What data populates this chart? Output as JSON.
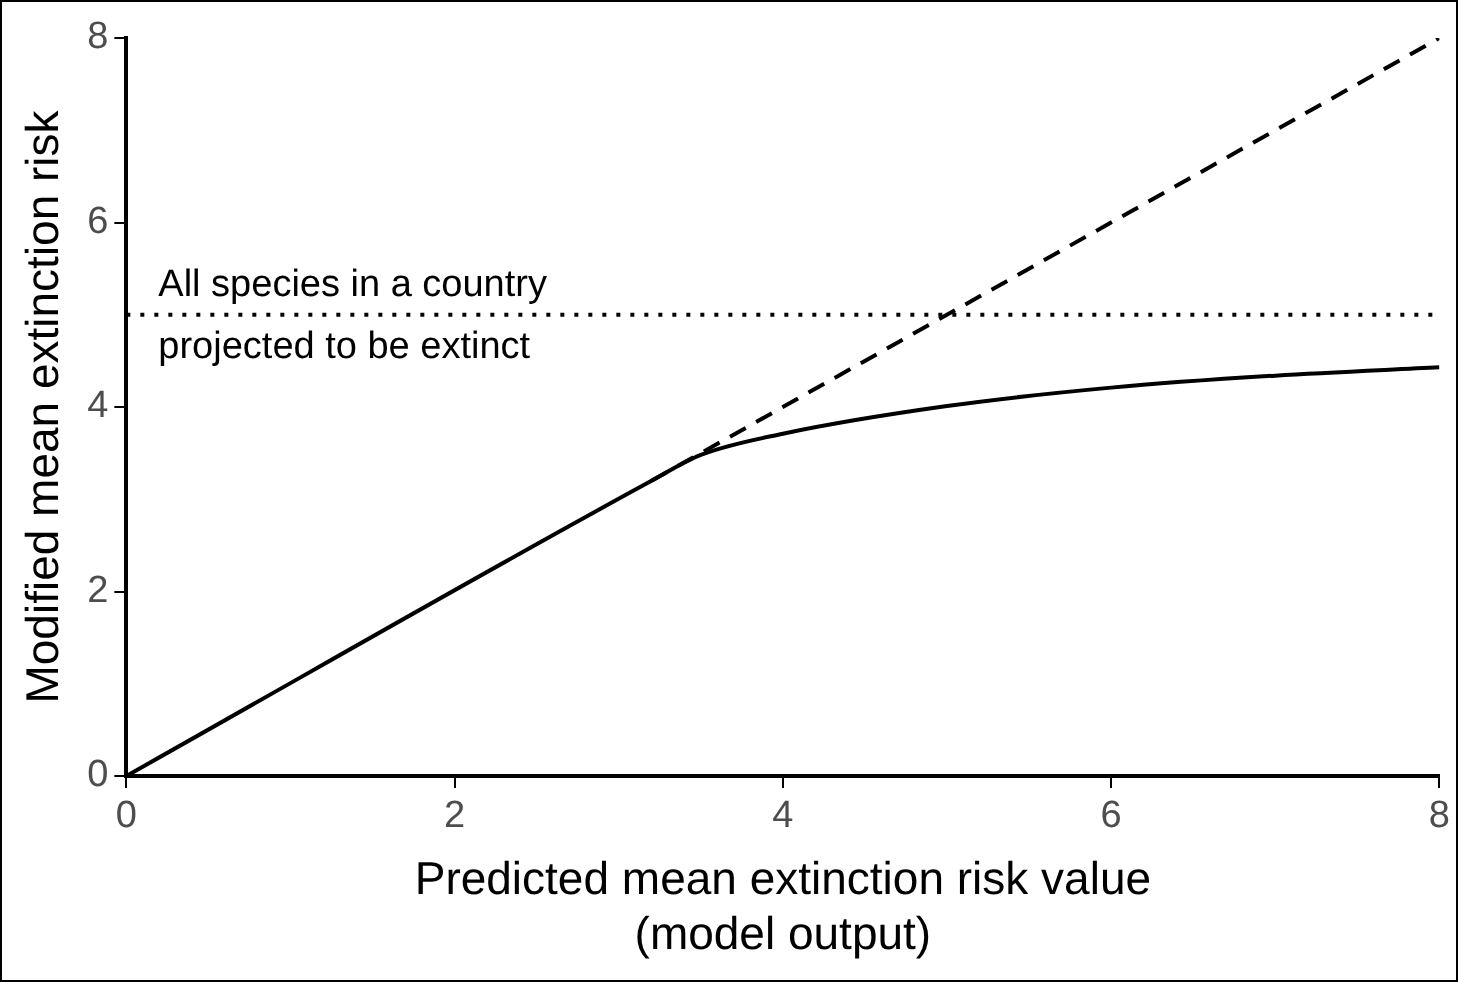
{
  "chart_data": {
    "type": "line",
    "xlabel": "Predicted mean extinction risk value\n(model output)",
    "ylabel": "Modified mean extinction risk",
    "xlim": [
      0,
      8
    ],
    "xticks": [
      0,
      2,
      4,
      6,
      8
    ],
    "ylim": [
      0,
      8
    ],
    "yticks": [
      0,
      2,
      4,
      6,
      8
    ],
    "grid": false,
    "legend": false,
    "marker": "none",
    "series": [
      {
        "color": "#000000",
        "line_style": "dashed",
        "x": [
          3.2,
          8
        ],
        "values": [
          3.2,
          8
        ]
      },
      {
        "color": "#000000",
        "line_style": "solid",
        "x": [
          0,
          3.2,
          3.5,
          4,
          5,
          6,
          7,
          8
        ],
        "values": [
          0,
          3.2,
          3.48,
          3.71,
          4.01,
          4.21,
          4.34,
          4.43
        ]
      }
    ],
    "ref_lines": [
      {
        "axis": "y",
        "value": 5,
        "label": "All species in a country\nprojected to be extinct",
        "line_style": "dotted",
        "color": "#000000"
      }
    ]
  }
}
